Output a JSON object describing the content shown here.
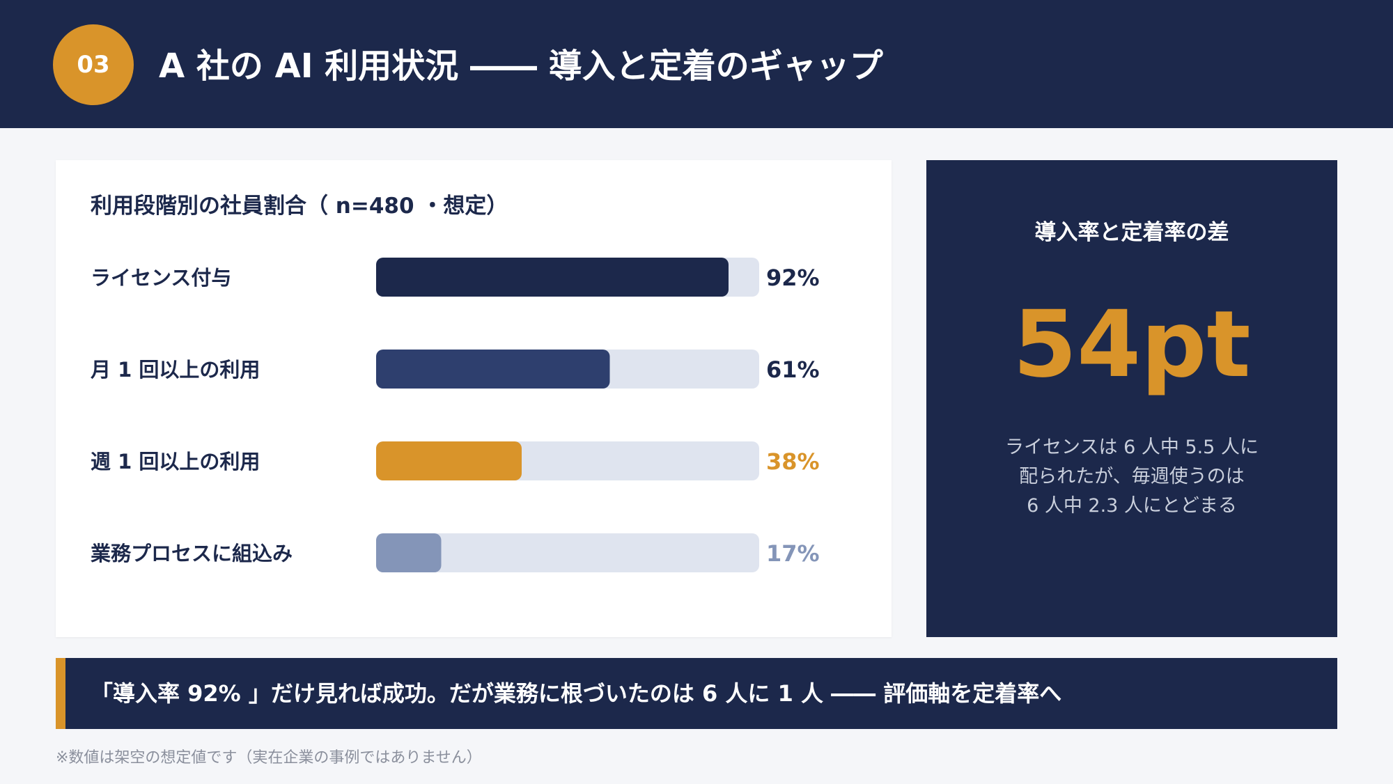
{
  "header": {
    "badge": "03",
    "title": "A 社の AI 利用状況 ―― 導入と定着のギャップ"
  },
  "chart_data": {
    "type": "bar",
    "orientation": "horizontal",
    "title": "利用段階別の社員割合（ n=480 ・想定）",
    "categories": [
      "ライセンス付与",
      "月 1 回以上の利用",
      "週 1 回以上の利用",
      "業務プロセスに組込み"
    ],
    "values": [
      92,
      61,
      38,
      17
    ],
    "value_labels": [
      "92%",
      "61%",
      "38%",
      "17%"
    ],
    "bar_colors": [
      "#1c284b",
      "#2e3f6e",
      "#d9942a",
      "#8495b8"
    ],
    "label_colors": [
      "#1c284b",
      "#1c284b",
      "#d9942a",
      "#8495b8"
    ],
    "track_color": "#dfe4ef",
    "xlim": [
      0,
      100
    ],
    "grid": false
  },
  "gap": {
    "heading": "導入率と定着率の差",
    "value": "54pt",
    "note_lines": [
      "ライセンスは 6 人中 5.5 人に",
      "配られたが、毎週使うのは",
      "6 人中 2.3 人にとどまる"
    ]
  },
  "banner": {
    "text": "「導入率 92% 」だけ見れば成功。だが業務に根づいたのは 6 人に 1 人 ―― 評価軸を定着率へ"
  },
  "footnote": "※数値は架空の想定値です（実在企業の事例ではありません）",
  "colors": {
    "navy": "#1c284b",
    "accent": "#d9942a",
    "background": "#f5f6f9"
  }
}
